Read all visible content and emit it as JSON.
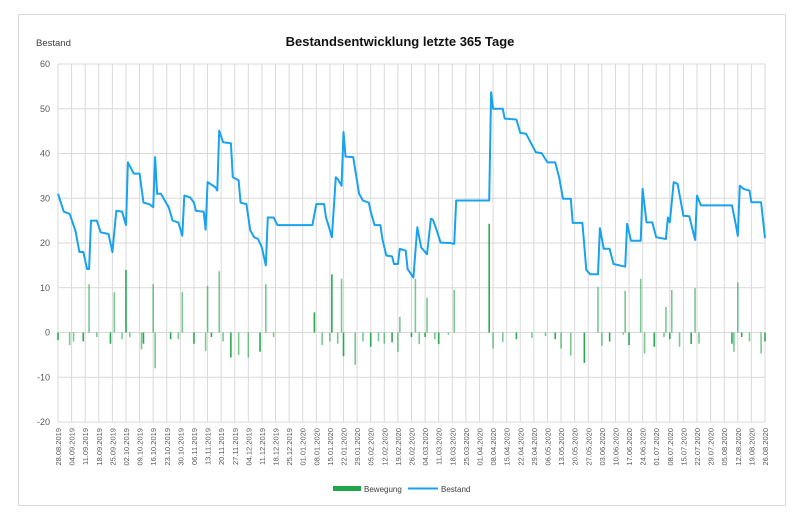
{
  "chart_data": {
    "type": "bar+line",
    "title": "Bestandsentwicklung letzte 365 Tage",
    "ylabel": "Bestand",
    "xlabel": "",
    "ylim": [
      -20,
      60
    ],
    "yticks": [
      -20,
      -10,
      0,
      10,
      20,
      30,
      40,
      50,
      60
    ],
    "grid": true,
    "legend_position": "bottom",
    "xtick_labels": [
      "28.08.2019",
      "04.09.2019",
      "11.09.2019",
      "18.09.2019",
      "25.09.2019",
      "02.10.2019",
      "09.10.2019",
      "16.10.2019",
      "23.10.2019",
      "30.10.2019",
      "06.11.2019",
      "13.11.2019",
      "20.11.2019",
      "27.11.2019",
      "04.12.2019",
      "11.12.2019",
      "18.12.2019",
      "25.12.2019",
      "01.01.2020",
      "08.01.2020",
      "15.01.2020",
      "22.01.2020",
      "29.01.2020",
      "05.02.2020",
      "12.02.2020",
      "19.02.2020",
      "26.02.2020",
      "04.03.2020",
      "11.03.2020",
      "18.03.2020",
      "25.03.2020",
      "01.04.2020",
      "08.04.2020",
      "15.04.2020",
      "22.04.2020",
      "29.04.2020",
      "06.05.2020",
      "13.05.2020",
      "20.05.2020",
      "27.05.2020",
      "03.06.2020",
      "10.06.2020",
      "17.06.2020",
      "24.06.2020",
      "01.07.2020",
      "08.07.2020",
      "15.07.2020",
      "22.07.2020",
      "29.07.2020",
      "05.08.2020",
      "12.08.2020",
      "19.08.2020",
      "26.08.2020"
    ],
    "series": [
      {
        "name": "Bewegung",
        "type": "bar",
        "color": "#1fa64a",
        "points": [
          [
            "2019-08-28",
            -1.7
          ],
          [
            "2019-09-03",
            -2.8
          ],
          [
            "2019-09-05",
            -2
          ],
          [
            "2019-09-10",
            -2
          ],
          [
            "2019-09-13",
            10.8
          ],
          [
            "2019-09-17",
            -1
          ],
          [
            "2019-09-24",
            -2.5
          ],
          [
            "2019-09-26",
            9
          ],
          [
            "2019-09-30",
            -1.5
          ],
          [
            "2019-10-02",
            14
          ],
          [
            "2019-10-04",
            -1
          ],
          [
            "2019-10-10",
            -3.8
          ],
          [
            "2019-10-11",
            -2.5
          ],
          [
            "2019-10-16",
            10.8
          ],
          [
            "2019-10-17",
            -8
          ],
          [
            "2019-10-25",
            -1.5
          ],
          [
            "2019-10-29",
            -1.5
          ],
          [
            "2019-10-31",
            9
          ],
          [
            "2019-11-06",
            -2.5
          ],
          [
            "2019-11-12",
            -4.1
          ],
          [
            "2019-11-13",
            10.4
          ],
          [
            "2019-11-15",
            -1
          ],
          [
            "2019-11-19",
            13.7
          ],
          [
            "2019-11-21",
            -2
          ],
          [
            "2019-11-25",
            -5.6
          ],
          [
            "2019-11-29",
            -5
          ],
          [
            "2019-12-04",
            -5.6
          ],
          [
            "2019-12-10",
            -4.3
          ],
          [
            "2019-12-13",
            10.8
          ],
          [
            "2019-12-17",
            -1
          ],
          [
            "2020-01-07",
            4.5
          ],
          [
            "2020-01-11",
            -2.8
          ],
          [
            "2020-01-15",
            -2
          ],
          [
            "2020-01-16",
            13
          ],
          [
            "2020-01-19",
            -2.5
          ],
          [
            "2020-01-21",
            12
          ],
          [
            "2020-01-22",
            -5.3
          ],
          [
            "2020-01-28",
            -7.2
          ],
          [
            "2020-02-01",
            -2
          ],
          [
            "2020-02-05",
            -3.2
          ],
          [
            "2020-02-09",
            -2
          ],
          [
            "2020-02-12",
            -2.5
          ],
          [
            "2020-02-16",
            -2.2
          ],
          [
            "2020-02-19",
            -4.3
          ],
          [
            "2020-02-20",
            3.5
          ],
          [
            "2020-02-26",
            -1
          ],
          [
            "2020-02-28",
            12
          ],
          [
            "2020-03-01",
            -2.6
          ],
          [
            "2020-03-04",
            -1
          ],
          [
            "2020-03-05",
            7.8
          ],
          [
            "2020-03-09",
            -1.5
          ],
          [
            "2020-03-11",
            -2.6
          ],
          [
            "2020-03-16",
            -0.5
          ],
          [
            "2020-03-19",
            9.5
          ],
          [
            "2020-04-06",
            24.3
          ],
          [
            "2020-04-08",
            -3.6
          ],
          [
            "2020-04-13",
            -2.1
          ],
          [
            "2020-04-20",
            -1.5
          ],
          [
            "2020-04-28",
            -1.2
          ],
          [
            "2020-05-05",
            -0.8
          ],
          [
            "2020-05-10",
            -1.5
          ],
          [
            "2020-05-13",
            -3.6
          ],
          [
            "2020-05-18",
            -5.2
          ],
          [
            "2020-05-25",
            -6.8
          ],
          [
            "2020-06-01",
            10.2
          ],
          [
            "2020-06-03",
            -3
          ],
          [
            "2020-06-07",
            -2
          ],
          [
            "2020-06-14",
            -0.5
          ],
          [
            "2020-06-15",
            9.3
          ],
          [
            "2020-06-17",
            -2.8
          ],
          [
            "2020-06-23",
            12
          ],
          [
            "2020-06-25",
            -4.7
          ],
          [
            "2020-06-30",
            -3.2
          ],
          [
            "2020-07-05",
            -1
          ],
          [
            "2020-07-06",
            5.7
          ],
          [
            "2020-07-08",
            -1.5
          ],
          [
            "2020-07-09",
            9.5
          ],
          [
            "2020-07-13",
            -3.2
          ],
          [
            "2020-07-19",
            -2.6
          ],
          [
            "2020-07-21",
            9.9
          ],
          [
            "2020-07-23",
            -2.5
          ],
          [
            "2020-08-09",
            -2.5
          ],
          [
            "2020-08-10",
            -4.3
          ],
          [
            "2020-08-12",
            11.2
          ],
          [
            "2020-08-14",
            -1
          ],
          [
            "2020-08-18",
            -2
          ],
          [
            "2020-08-24",
            -4.7
          ],
          [
            "2020-08-26",
            -2
          ]
        ]
      },
      {
        "name": "Bestand",
        "type": "line",
        "color": "#1aa3ec",
        "points": [
          [
            "2019-08-28",
            31
          ],
          [
            "2019-08-31",
            27
          ],
          [
            "2019-09-03",
            26.5
          ],
          [
            "2019-09-06",
            22.7
          ],
          [
            "2019-09-08",
            18
          ],
          [
            "2019-09-10",
            18
          ],
          [
            "2019-09-12",
            14.2
          ],
          [
            "2019-09-13",
            14.2
          ],
          [
            "2019-09-14",
            25
          ],
          [
            "2019-09-17",
            25
          ],
          [
            "2019-09-19",
            22.4
          ],
          [
            "2019-09-23",
            22
          ],
          [
            "2019-09-25",
            18
          ],
          [
            "2019-09-27",
            27.2
          ],
          [
            "2019-09-30",
            27
          ],
          [
            "2019-10-02",
            24
          ],
          [
            "2019-10-03",
            38
          ],
          [
            "2019-10-06",
            35.5
          ],
          [
            "2019-10-09",
            35.5
          ],
          [
            "2019-10-11",
            29
          ],
          [
            "2019-10-14",
            28.7
          ],
          [
            "2019-10-16",
            28
          ],
          [
            "2019-10-17",
            39.2
          ],
          [
            "2019-10-18",
            31
          ],
          [
            "2019-10-20",
            31
          ],
          [
            "2019-10-22",
            29.5
          ],
          [
            "2019-10-24",
            28
          ],
          [
            "2019-10-26",
            25
          ],
          [
            "2019-10-29",
            24.6
          ],
          [
            "2019-10-31",
            21.6
          ],
          [
            "2019-11-01",
            30.6
          ],
          [
            "2019-11-04",
            30.2
          ],
          [
            "2019-11-06",
            29
          ],
          [
            "2019-11-07",
            27.2
          ],
          [
            "2019-11-11",
            27
          ],
          [
            "2019-11-12",
            23
          ],
          [
            "2019-11-13",
            33.6
          ],
          [
            "2019-11-17",
            32.5
          ],
          [
            "2019-11-18",
            31.7
          ],
          [
            "2019-11-19",
            45.1
          ],
          [
            "2019-11-21",
            42.5
          ],
          [
            "2019-11-25",
            42.3
          ],
          [
            "2019-11-26",
            34.7
          ],
          [
            "2019-11-29",
            34
          ],
          [
            "2019-11-30",
            29
          ],
          [
            "2019-12-03",
            28.7
          ],
          [
            "2019-12-05",
            22.8
          ],
          [
            "2019-12-07",
            21.3
          ],
          [
            "2019-12-09",
            20.9
          ],
          [
            "2019-12-11",
            19
          ],
          [
            "2019-12-13",
            15
          ],
          [
            "2019-12-14",
            25.7
          ],
          [
            "2019-12-17",
            25.7
          ],
          [
            "2019-12-19",
            24
          ],
          [
            "2020-01-06",
            24
          ],
          [
            "2020-01-08",
            28.7
          ],
          [
            "2020-01-12",
            28.7
          ],
          [
            "2020-01-13",
            25.7
          ],
          [
            "2020-01-14",
            24.3
          ],
          [
            "2020-01-16",
            21.3
          ],
          [
            "2020-01-18",
            34.7
          ],
          [
            "2020-01-19",
            34.3
          ],
          [
            "2020-01-21",
            32.8
          ],
          [
            "2020-01-22",
            44.8
          ],
          [
            "2020-01-23",
            39.3
          ],
          [
            "2020-01-27",
            39.2
          ],
          [
            "2020-01-30",
            31
          ],
          [
            "2020-02-01",
            29.5
          ],
          [
            "2020-02-04",
            29
          ],
          [
            "2020-02-05",
            27
          ],
          [
            "2020-02-07",
            24
          ],
          [
            "2020-02-10",
            24
          ],
          [
            "2020-02-11",
            20.9
          ],
          [
            "2020-02-13",
            17.2
          ],
          [
            "2020-02-16",
            17
          ],
          [
            "2020-02-17",
            15.3
          ],
          [
            "2020-02-19",
            15.3
          ],
          [
            "2020-02-20",
            18.7
          ],
          [
            "2020-02-23",
            18.3
          ],
          [
            "2020-02-24",
            14.2
          ],
          [
            "2020-02-27",
            12.3
          ],
          [
            "2020-02-29",
            23.5
          ],
          [
            "2020-03-02",
            19
          ],
          [
            "2020-03-05",
            17.5
          ],
          [
            "2020-03-07",
            25.4
          ],
          [
            "2020-03-08",
            25.2
          ],
          [
            "2020-03-10",
            22.8
          ],
          [
            "2020-03-12",
            20.1
          ],
          [
            "2020-03-17",
            20
          ],
          [
            "2020-03-19",
            19.8
          ],
          [
            "2020-03-20",
            29.5
          ],
          [
            "2020-04-06",
            29.5
          ],
          [
            "2020-04-07",
            53.7
          ],
          [
            "2020-04-08",
            50
          ],
          [
            "2020-04-13",
            50
          ],
          [
            "2020-04-14",
            47.8
          ],
          [
            "2020-04-20",
            47.6
          ],
          [
            "2020-04-22",
            44.6
          ],
          [
            "2020-04-25",
            44.4
          ],
          [
            "2020-04-30",
            40.3
          ],
          [
            "2020-05-03",
            40.1
          ],
          [
            "2020-05-06",
            38
          ],
          [
            "2020-05-10",
            38
          ],
          [
            "2020-05-12",
            34.7
          ],
          [
            "2020-05-14",
            29.9
          ],
          [
            "2020-05-18",
            29.9
          ],
          [
            "2020-05-19",
            24.5
          ],
          [
            "2020-05-24",
            24.5
          ],
          [
            "2020-05-26",
            14
          ],
          [
            "2020-05-28",
            13
          ],
          [
            "2020-06-01",
            13
          ],
          [
            "2020-06-02",
            23.3
          ],
          [
            "2020-06-04",
            18.7
          ],
          [
            "2020-06-07",
            18.7
          ],
          [
            "2020-06-09",
            15.3
          ],
          [
            "2020-06-15",
            14.7
          ],
          [
            "2020-06-16",
            24.3
          ],
          [
            "2020-06-18",
            20.5
          ],
          [
            "2020-06-23",
            20.5
          ],
          [
            "2020-06-24",
            32.1
          ],
          [
            "2020-06-26",
            24.6
          ],
          [
            "2020-06-29",
            24.6
          ],
          [
            "2020-07-01",
            21.3
          ],
          [
            "2020-07-06",
            20.9
          ],
          [
            "2020-07-07",
            25.7
          ],
          [
            "2020-07-08",
            24.6
          ],
          [
            "2020-07-10",
            33.6
          ],
          [
            "2020-07-12",
            33.2
          ],
          [
            "2020-07-15",
            26.1
          ],
          [
            "2020-07-18",
            26
          ],
          [
            "2020-07-21",
            20.7
          ],
          [
            "2020-07-22",
            30.6
          ],
          [
            "2020-07-24",
            28.4
          ],
          [
            "2020-08-09",
            28.4
          ],
          [
            "2020-08-11",
            24
          ],
          [
            "2020-08-12",
            21.6
          ],
          [
            "2020-08-13",
            32.8
          ],
          [
            "2020-08-15",
            32.1
          ],
          [
            "2020-08-18",
            31.7
          ],
          [
            "2020-08-19",
            29.1
          ],
          [
            "2020-08-24",
            29.1
          ],
          [
            "2020-08-26",
            21.1
          ]
        ]
      }
    ]
  }
}
